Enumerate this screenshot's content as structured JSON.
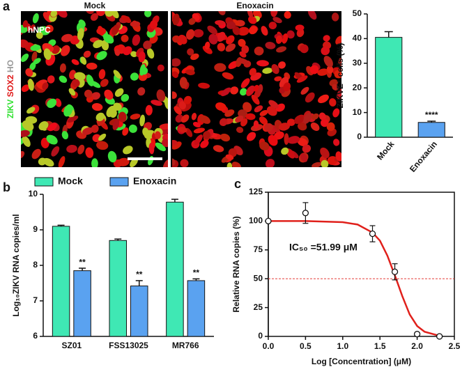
{
  "panel_labels": [
    "a",
    "b",
    "c"
  ],
  "micrograph": {
    "labels": [
      "Mock",
      "Enoxacin"
    ],
    "cell_label": "hNPC",
    "stain_labels": [
      "ZIKV",
      "SOX2",
      "HO"
    ]
  },
  "chart_data": [
    {
      "type": "bar",
      "ylabel": "ZIKVE⁺ cells (%)",
      "categories": [
        "Mock",
        "Enoxacin"
      ],
      "values": [
        40.5,
        6
      ],
      "errors": [
        2.3,
        0.5
      ],
      "value_annotations": [
        null,
        "****"
      ],
      "colors": [
        "#3fe8b4",
        "#5aa2f0"
      ],
      "ylim": [
        0,
        50
      ],
      "yticks": [
        0,
        10,
        20,
        30,
        40,
        50
      ]
    },
    {
      "type": "grouped_bar",
      "ylabel": "Log₁₀ZIKV RNA copies/ml",
      "categories": [
        "SZ01",
        "FSS13025",
        "MR766"
      ],
      "series": [
        {
          "name": "Mock",
          "color": "#3fe8b4",
          "values": [
            9.1,
            8.7,
            9.78
          ],
          "errors": [
            0.03,
            0.04,
            0.08
          ],
          "annotations": [
            null,
            null,
            null
          ]
        },
        {
          "name": "Enoxacin",
          "color": "#5aa2f0",
          "values": [
            7.85,
            7.42,
            7.57
          ],
          "errors": [
            0.07,
            0.15,
            0.05
          ],
          "annotations": [
            "**",
            "**",
            "**"
          ]
        }
      ],
      "ylim": [
        6,
        10
      ],
      "yticks": [
        6,
        7,
        8,
        9,
        10
      ],
      "legend": "top"
    },
    {
      "type": "dose_response",
      "xlabel": "Log [Concentration] (μM)",
      "ylabel": "Relative RNA copies (%)",
      "annotation": "IC₅₀ =51.99 μM",
      "x": [
        0,
        0.5,
        1.4,
        1.7,
        2.0,
        2.3
      ],
      "values": [
        100,
        107,
        89,
        56,
        2,
        0
      ],
      "errors": [
        1,
        9,
        7,
        7,
        1,
        0.5
      ],
      "fit_curve": {
        "color": "#e0201b",
        "x": [
          0,
          0.5,
          1.0,
          1.2,
          1.4,
          1.5,
          1.6,
          1.7,
          1.8,
          1.9,
          2.0,
          2.1,
          2.3
        ],
        "y": [
          100,
          100,
          99,
          97,
          90,
          83,
          70,
          53,
          35,
          19,
          9,
          4,
          0.5
        ]
      },
      "reference_line": 50,
      "reference_color": "#e0201b",
      "xlim": [
        0,
        2.5
      ],
      "xticks": [
        {
          "value": 0,
          "label": "0.0"
        },
        {
          "value": 0.5,
          "label": "0.5"
        },
        {
          "value": 1,
          "label": "1.0"
        },
        {
          "value": 1.5,
          "label": "1.5"
        },
        {
          "value": 2,
          "label": "2.0"
        },
        {
          "value": 2.5,
          "label": "2.5"
        }
      ],
      "ylim": [
        0,
        125
      ],
      "yticks": [
        0,
        25,
        50,
        75,
        100,
        125
      ]
    }
  ]
}
